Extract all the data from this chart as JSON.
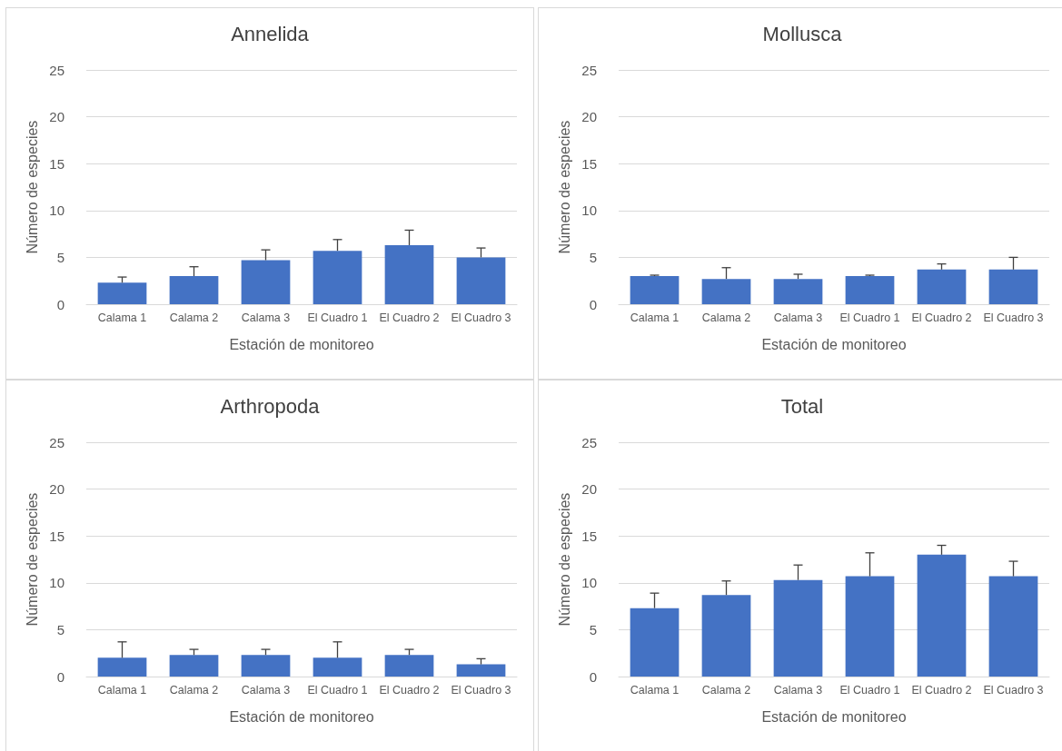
{
  "chart_data": [
    {
      "type": "bar",
      "title": "Annelida",
      "xlabel": "Estación de monitoreo",
      "ylabel": "Número de especies",
      "categories": [
        "Calama 1",
        "Calama 2",
        "Calama 3",
        "El Cuadro 1",
        "El Cuadro 2",
        "El Cuadro 3"
      ],
      "values": [
        2.3,
        3.0,
        4.7,
        5.7,
        6.3,
        5.0
      ],
      "errors": [
        [
          2.3,
          2.9
        ],
        [
          3.0,
          4.0
        ],
        [
          4.7,
          5.8
        ],
        [
          5.7,
          6.9
        ],
        [
          6.3,
          7.9
        ],
        [
          5.0,
          6.0
        ]
      ],
      "color": "#4472c4",
      "ylim": [
        0,
        25
      ],
      "yticks": [
        0,
        5,
        10,
        15,
        20,
        25
      ],
      "grid": "y"
    },
    {
      "type": "bar",
      "title": "Mollusca",
      "xlabel": "Estación de monitoreo",
      "ylabel": "Número de especies",
      "categories": [
        "Calama 1",
        "Calama 2",
        "Calama 3",
        "El Cuadro 1",
        "El Cuadro 2",
        "El Cuadro 3"
      ],
      "values": [
        3.0,
        2.7,
        2.7,
        3.0,
        3.7,
        3.7
      ],
      "errors": [
        [
          3.0,
          3.1
        ],
        [
          2.7,
          3.9
        ],
        [
          2.7,
          3.2
        ],
        [
          3.0,
          3.1
        ],
        [
          3.7,
          4.3
        ],
        [
          3.7,
          5.0
        ]
      ],
      "color": "#4472c4",
      "ylim": [
        0,
        25
      ],
      "yticks": [
        0,
        5,
        10,
        15,
        20,
        25
      ],
      "grid": "y"
    },
    {
      "type": "bar",
      "title": "Arthropoda",
      "xlabel": "Estación de monitoreo",
      "ylabel": "Número de especies",
      "categories": [
        "Calama 1",
        "Calama 2",
        "Calama 3",
        "El Cuadro 1",
        "El Cuadro 2",
        "El Cuadro 3"
      ],
      "values": [
        2.0,
        2.3,
        2.3,
        2.0,
        2.3,
        1.3
      ],
      "errors": [
        [
          2.0,
          3.7
        ],
        [
          2.3,
          2.9
        ],
        [
          2.3,
          2.9
        ],
        [
          2.0,
          3.7
        ],
        [
          2.3,
          2.9
        ],
        [
          1.3,
          1.9
        ]
      ],
      "color": "#4472c4",
      "ylim": [
        0,
        25
      ],
      "yticks": [
        0,
        5,
        10,
        15,
        20,
        25
      ],
      "grid": "y"
    },
    {
      "type": "bar",
      "title": "Total",
      "xlabel": "Estación de monitoreo",
      "ylabel": "Número de especies",
      "categories": [
        "Calama 1",
        "Calama 2",
        "Calama 3",
        "El Cuadro 1",
        "El Cuadro 2",
        "El Cuadro 3"
      ],
      "values": [
        7.3,
        8.7,
        10.3,
        10.7,
        13.0,
        10.7
      ],
      "errors": [
        [
          7.3,
          8.9
        ],
        [
          8.7,
          10.2
        ],
        [
          10.3,
          11.9
        ],
        [
          10.7,
          13.2
        ],
        [
          13.0,
          14.0
        ],
        [
          10.7,
          12.3
        ]
      ],
      "color": "#4472c4",
      "ylim": [
        0,
        25
      ],
      "yticks": [
        0,
        5,
        10,
        15,
        20,
        25
      ],
      "grid": "y"
    }
  ]
}
